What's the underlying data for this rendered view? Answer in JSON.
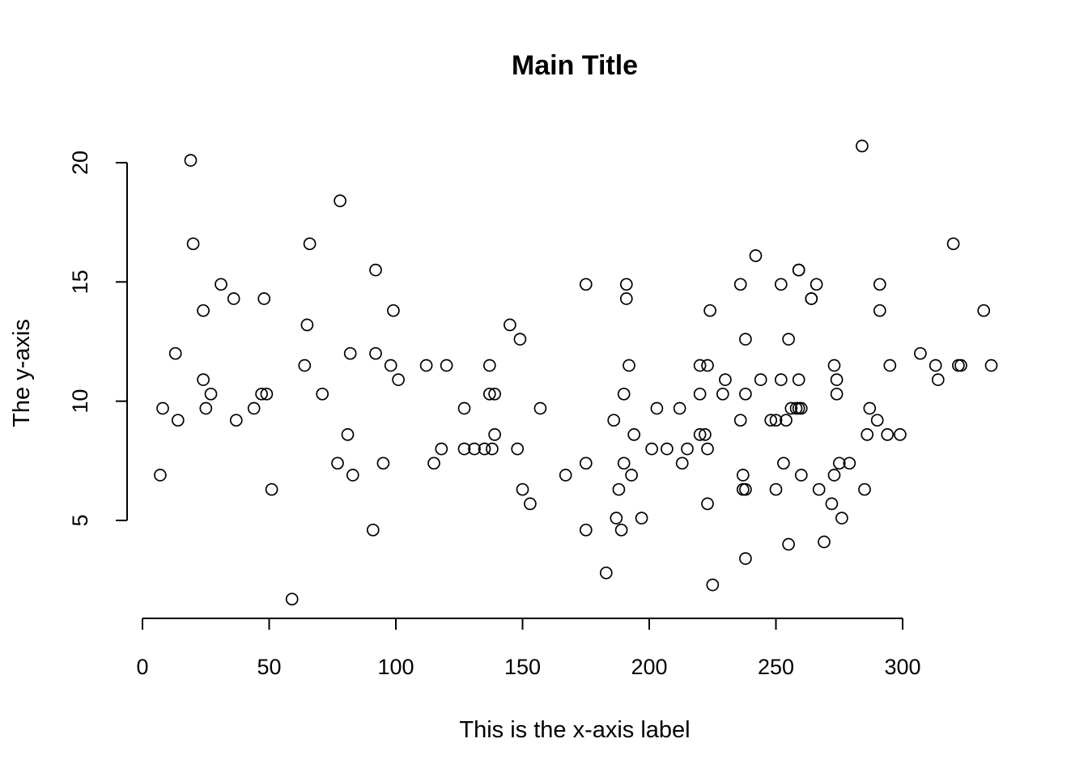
{
  "chart_data": {
    "type": "scatter",
    "title": "Main Title",
    "xlabel": "This is the x-axis label",
    "ylabel": "The y-axis",
    "xlim": [
      0,
      330
    ],
    "ylim": [
      1.6,
      20.7
    ],
    "x_ticks": [
      0,
      50,
      100,
      150,
      200,
      250,
      300
    ],
    "y_ticks": [
      5,
      10,
      15,
      20
    ],
    "grid": false,
    "legend": "none",
    "marker": "open-circle",
    "points": [
      [
        7,
        6.9
      ],
      [
        8,
        9.7
      ],
      [
        13,
        12.0
      ],
      [
        14,
        9.2
      ],
      [
        19,
        20.1
      ],
      [
        20,
        16.6
      ],
      [
        24,
        13.8
      ],
      [
        24,
        10.9
      ],
      [
        25,
        9.7
      ],
      [
        27,
        10.3
      ],
      [
        31,
        14.9
      ],
      [
        36,
        14.3
      ],
      [
        37,
        9.2
      ],
      [
        44,
        9.7
      ],
      [
        47,
        10.3
      ],
      [
        48,
        14.3
      ],
      [
        49,
        10.3
      ],
      [
        51,
        6.3
      ],
      [
        59,
        1.7
      ],
      [
        64,
        11.5
      ],
      [
        65,
        13.2
      ],
      [
        66,
        16.6
      ],
      [
        71,
        10.3
      ],
      [
        77,
        7.4
      ],
      [
        78,
        18.4
      ],
      [
        81,
        8.6
      ],
      [
        82,
        12.0
      ],
      [
        83,
        6.9
      ],
      [
        91,
        4.6
      ],
      [
        92,
        15.5
      ],
      [
        92,
        12.0
      ],
      [
        95,
        7.4
      ],
      [
        98,
        11.5
      ],
      [
        99,
        13.8
      ],
      [
        101,
        10.9
      ],
      [
        112,
        11.5
      ],
      [
        115,
        7.4
      ],
      [
        118,
        8.0
      ],
      [
        120,
        11.5
      ],
      [
        127,
        9.7
      ],
      [
        127,
        8.0
      ],
      [
        131,
        8.0
      ],
      [
        135,
        8.0
      ],
      [
        137,
        11.5
      ],
      [
        137,
        10.3
      ],
      [
        138,
        8.0
      ],
      [
        139,
        10.3
      ],
      [
        139,
        8.6
      ],
      [
        145,
        13.2
      ],
      [
        148,
        8.0
      ],
      [
        149,
        12.6
      ],
      [
        150,
        6.3
      ],
      [
        153,
        5.7
      ],
      [
        157,
        9.7
      ],
      [
        167,
        6.9
      ],
      [
        175,
        14.9
      ],
      [
        175,
        7.4
      ],
      [
        175,
        4.6
      ],
      [
        183,
        2.8
      ],
      [
        186,
        9.2
      ],
      [
        187,
        5.1
      ],
      [
        188,
        6.3
      ],
      [
        189,
        4.6
      ],
      [
        190,
        10.3
      ],
      [
        190,
        7.4
      ],
      [
        191,
        14.9
      ],
      [
        191,
        14.3
      ],
      [
        192,
        11.5
      ],
      [
        193,
        6.9
      ],
      [
        194,
        8.6
      ],
      [
        197,
        5.1
      ],
      [
        201,
        8.0
      ],
      [
        203,
        9.7
      ],
      [
        207,
        8.0
      ],
      [
        212,
        9.7
      ],
      [
        213,
        7.4
      ],
      [
        215,
        8.0
      ],
      [
        220,
        11.5
      ],
      [
        220,
        10.3
      ],
      [
        220,
        8.6
      ],
      [
        222,
        8.6
      ],
      [
        223,
        11.5
      ],
      [
        223,
        8.0
      ],
      [
        223,
        5.7
      ],
      [
        224,
        13.8
      ],
      [
        225,
        2.3
      ],
      [
        229,
        10.3
      ],
      [
        230,
        10.9
      ],
      [
        236,
        14.9
      ],
      [
        236,
        9.2
      ],
      [
        237,
        6.9
      ],
      [
        237,
        6.3
      ],
      [
        238,
        12.6
      ],
      [
        238,
        10.3
      ],
      [
        238,
        6.3
      ],
      [
        238,
        3.4
      ],
      [
        242,
        16.1
      ],
      [
        244,
        10.9
      ],
      [
        248,
        9.2
      ],
      [
        250,
        9.2
      ],
      [
        250,
        6.3
      ],
      [
        252,
        14.9
      ],
      [
        252,
        10.9
      ],
      [
        253,
        7.4
      ],
      [
        254,
        9.2
      ],
      [
        255,
        12.6
      ],
      [
        255,
        4.0
      ],
      [
        256,
        9.7
      ],
      [
        258,
        9.7
      ],
      [
        259,
        15.5
      ],
      [
        259,
        15.5
      ],
      [
        259,
        10.9
      ],
      [
        259,
        9.7
      ],
      [
        260,
        9.7
      ],
      [
        260,
        6.9
      ],
      [
        264,
        14.3
      ],
      [
        264,
        14.3
      ],
      [
        266,
        14.9
      ],
      [
        267,
        6.3
      ],
      [
        269,
        4.1
      ],
      [
        272,
        5.7
      ],
      [
        273,
        11.5
      ],
      [
        273,
        6.9
      ],
      [
        274,
        10.9
      ],
      [
        274,
        10.3
      ],
      [
        275,
        7.4
      ],
      [
        276,
        5.1
      ],
      [
        279,
        7.4
      ],
      [
        284,
        20.7
      ],
      [
        285,
        6.3
      ],
      [
        286,
        8.6
      ],
      [
        287,
        9.7
      ],
      [
        290,
        9.2
      ],
      [
        291,
        14.9
      ],
      [
        291,
        13.8
      ],
      [
        294,
        8.6
      ],
      [
        295,
        11.5
      ],
      [
        299,
        8.6
      ],
      [
        307,
        12.0
      ],
      [
        313,
        11.5
      ],
      [
        314,
        10.9
      ],
      [
        320,
        16.6
      ],
      [
        322,
        11.5
      ],
      [
        323,
        11.5
      ],
      [
        332,
        13.8
      ],
      [
        335,
        11.5
      ]
    ]
  }
}
